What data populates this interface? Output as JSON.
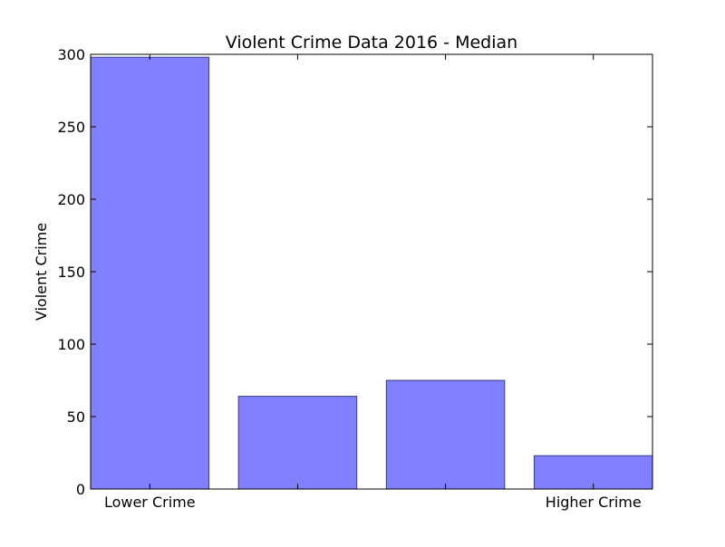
{
  "chart_data": {
    "type": "bar",
    "title": "Violent Crime Data 2016 - Median",
    "xlabel": "",
    "ylabel": "Violent Crime",
    "categories": [
      "Lower Crime",
      "",
      "",
      "Higher Crime"
    ],
    "values": [
      298,
      64,
      75,
      23
    ],
    "ylim": [
      0,
      300
    ],
    "yticks": [
      0,
      50,
      100,
      150,
      200,
      250,
      300
    ],
    "grid": false,
    "legend": "none",
    "colors": {
      "bar_fill": "#8080ff",
      "bar_edge": "#3a3a80",
      "axes": "#000000",
      "background": "#ffffff"
    }
  }
}
